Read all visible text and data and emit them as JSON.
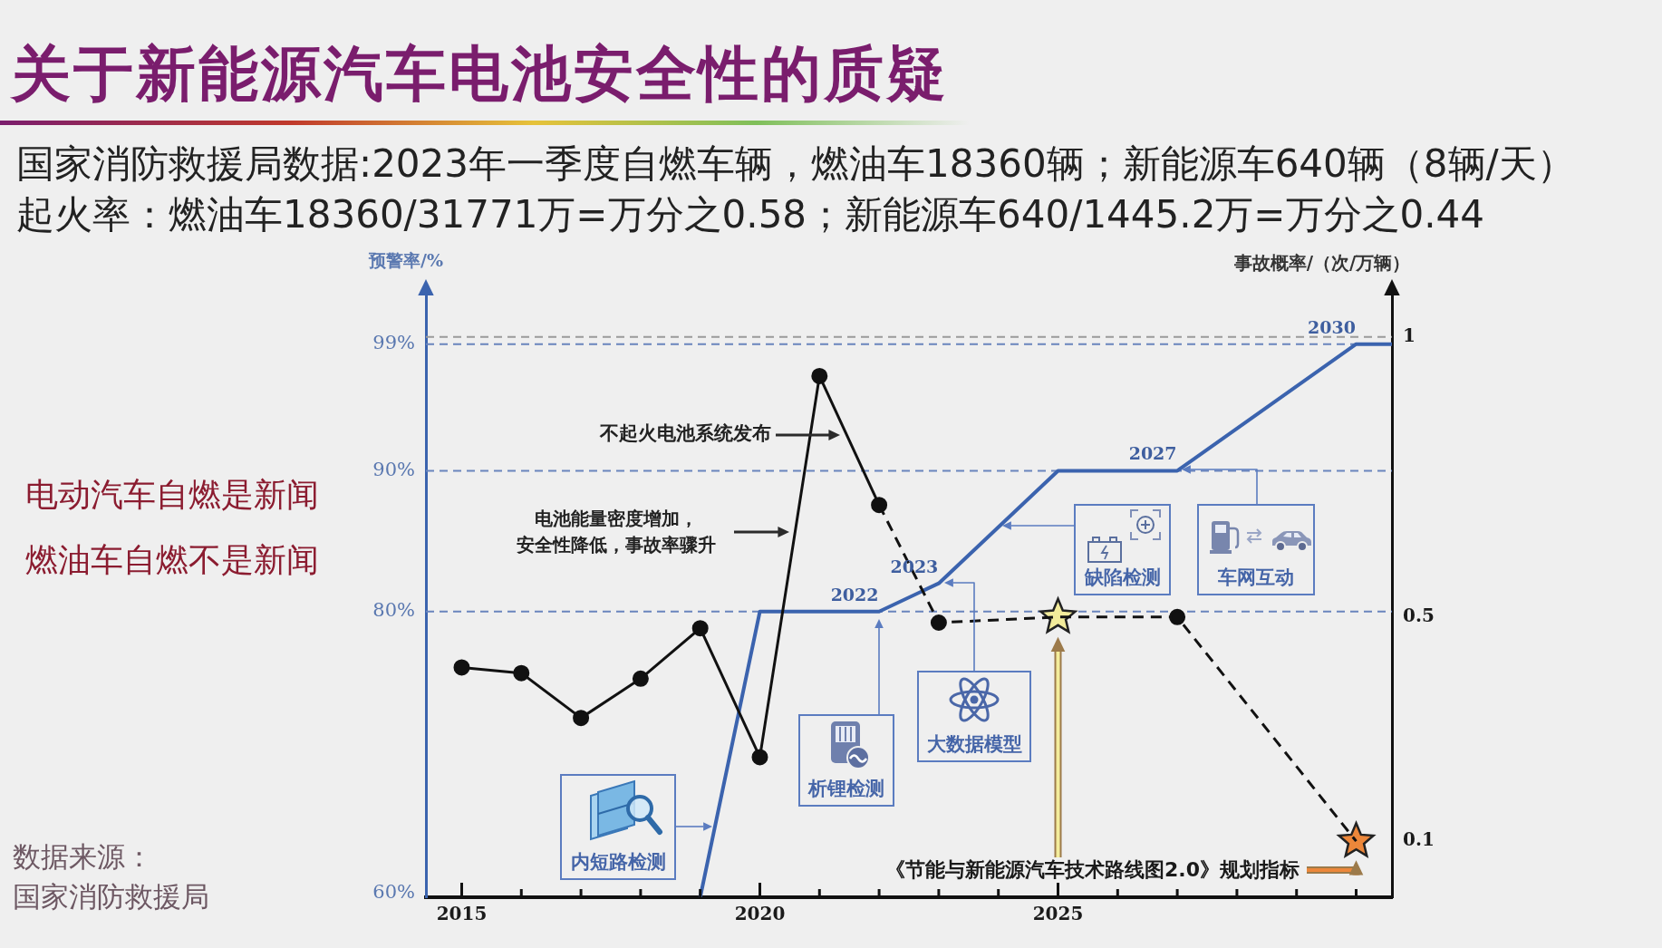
{
  "chart_data": {
    "type": "line",
    "title": "关于新能源汽车电池安全性的质疑",
    "subtitle": "国家消防救援局数据:2023年一季度自燃车辆，燃油车18360辆；新能源车640辆（8辆/天）",
    "ylabel": "预警率/%",
    "y2label": "事故概率/（次/万辆）",
    "xlim": [
      2014.4,
      2030.6
    ],
    "xticks": [
      2015,
      {
        "value": 2016,
        "label": null
      },
      {
        "value": 2017,
        "label": null
      },
      {
        "value": 2018,
        "label": null
      },
      {
        "value": 2019,
        "label": null
      },
      2020,
      {
        "value": 2021,
        "label": null
      },
      {
        "value": 2022,
        "label": null
      },
      {
        "value": 2023,
        "label": null
      },
      {
        "value": 2024,
        "label": null
      },
      2025,
      {
        "value": 2026,
        "label": null
      },
      {
        "value": 2027,
        "label": null
      },
      {
        "value": 2028,
        "label": null
      },
      {
        "value": 2029,
        "label": null
      },
      {
        "value": 2030,
        "label": null
      }
    ],
    "ylim": [
      59.7,
      103.1
    ],
    "yticks": [
      {
        "value": 60,
        "label": "60%"
      },
      {
        "value": 80,
        "label": "80%"
      },
      {
        "value": 90,
        "label": "90%"
      },
      {
        "value": 99,
        "label": "99%"
      }
    ],
    "y2lim": [
      0,
      1.09
    ],
    "y2ticks": [
      0.1,
      0.5,
      1
    ],
    "series": [
      {
        "type": "line",
        "color": "#3b63ae",
        "x": [
          2019,
          2020,
          2022,
          2023,
          2025,
          2027,
          2030,
          2030.6
        ],
        "values": [
          59.7,
          80,
          80,
          82,
          90,
          90,
          99,
          99
        ],
        "marker": "none"
      },
      {
        "type": "line",
        "axis": "y2",
        "color": "#111111",
        "x": [
          2015,
          2016,
          2017,
          2018,
          2019,
          2020,
          2021,
          2022
        ],
        "values": [
          0.41,
          0.4,
          0.32,
          0.39,
          0.48,
          0.25,
          0.93,
          0.7
        ],
        "marker": "circle"
      },
      {
        "type": "line",
        "axis": "y2",
        "color": "#111111",
        "x": [
          2022,
          2023,
          2025,
          2027,
          2030
        ],
        "values": [
          0.7,
          0.49,
          0.5,
          0.5,
          0.1
        ],
        "marker": "none",
        "line_style": "dashed"
      },
      {
        "type": "scatter",
        "axis": "y2",
        "color": "#111111",
        "x": [
          2023,
          2027
        ],
        "values": [
          0.49,
          0.5
        ],
        "marker": "circle"
      },
      {
        "type": "scatter",
        "axis": "y2",
        "colors": [
          "#f3ec9b",
          "#ec873a"
        ],
        "x": [
          2025,
          2030
        ],
        "values": [
          0.5,
          0.1
        ],
        "marker": "star"
      }
    ],
    "ref_lines": [
      {
        "axis": "y",
        "value": 99,
        "color": "#6a85bd",
        "line_style": "dashed"
      },
      {
        "axis": "y2",
        "value": 1,
        "color": "#9a9a9a",
        "line_style": "dashed"
      },
      {
        "axis": "y",
        "value": 90,
        "color": "#6a85bd",
        "line_style": "dashed"
      },
      {
        "axis": "y",
        "value": 80,
        "color": "#6a85bd",
        "line_style": "dashed"
      }
    ],
    "annotations": [
      "起火率：燃油车18360/31771万=万分之0.58；新能源车640/1445.2万=万分之0.44",
      "电动汽车自燃是新闻",
      "燃油车自燃不是新闻",
      "数据来源：",
      "国家消防救援局",
      "不起火电池系统发布",
      "电池能量密度增加，",
      "安全性降低，事故率骤升",
      "内短路检测",
      "析锂检测",
      "大数据模型",
      "缺陷检测",
      "车网互动",
      "《节能与新能源汽车技术路线图2.0》规划指标",
      {
        "text": "2022",
        "x": 2022,
        "y": 80
      },
      {
        "text": "2023",
        "x": 2023,
        "y": 82
      },
      {
        "text": "2027",
        "x": 2027,
        "y": 90
      },
      {
        "text": "2030",
        "x": 2030,
        "y": 99
      }
    ]
  }
}
